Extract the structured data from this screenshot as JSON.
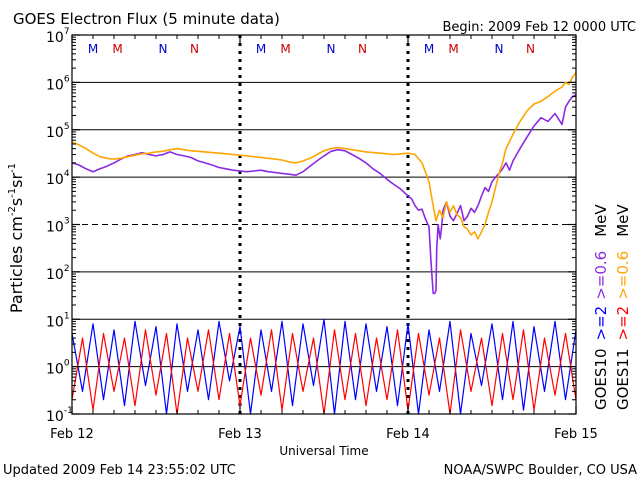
{
  "header": {
    "title": "GOES Electron Flux (5 minute data)",
    "begin": "Begin: 2009 Feb 12 0000 UTC"
  },
  "footer": {
    "updated": "Updated 2009 Feb 14 23:55:02 UTC",
    "credit": "NOAA/SWPC Boulder, CO USA"
  },
  "colors": {
    "goes10_2mev": "#0000ff",
    "goes11_2mev": "#ff0000",
    "goes10_06mev": "#8a2be2",
    "goes11_06mev": "#ffa500",
    "marker_m": "#0000cc",
    "marker_n": "#cc0000"
  },
  "chart_data": {
    "type": "line",
    "title": "GOES Electron Flux (5 minute data)",
    "xlabel": "Universal Time",
    "ylabel": "Particles cm^-2 s^-1 sr^-1",
    "xlim": [
      0,
      72
    ],
    "x_unit": "hours since 2009 Feb 12 0000 UTC",
    "ylim": [
      0.1,
      10000000
    ],
    "yscale": "log",
    "x_ticks": [
      {
        "x": 0,
        "label": "Feb 12"
      },
      {
        "x": 24,
        "label": "Feb 13"
      },
      {
        "x": 48,
        "label": "Feb 14"
      },
      {
        "x": 72,
        "label": "Feb 15"
      }
    ],
    "y_ticks": [
      {
        "value": 0.1,
        "base": "10",
        "exp": "-1"
      },
      {
        "value": 1,
        "base": "10",
        "exp": "0"
      },
      {
        "value": 10,
        "base": "10",
        "exp": "1"
      },
      {
        "value": 100,
        "base": "10",
        "exp": "2"
      },
      {
        "value": 1000,
        "base": "10",
        "exp": "3"
      },
      {
        "value": 10000,
        "base": "10",
        "exp": "4"
      },
      {
        "value": 100000,
        "base": "10",
        "exp": "5"
      },
      {
        "value": 1000000,
        "base": "10",
        "exp": "6"
      },
      {
        "value": 10000000,
        "base": "10",
        "exp": "7"
      }
    ],
    "ylabel_parts": {
      "main": "Particles cm",
      "e1": "-2",
      "s": "s",
      "e2": "-1",
      "sr": "sr",
      "e3": "-1"
    },
    "threshold_lines": [
      {
        "value": 1000,
        "style": "dashed"
      }
    ],
    "series": [
      {
        "name": "GOES10 >=0.6 MeV",
        "color": "#8a2be2",
        "x": [
          0,
          1,
          2,
          3,
          4,
          5,
          6,
          7,
          8,
          9,
          10,
          11,
          12,
          13,
          14,
          15,
          16,
          17,
          18,
          19,
          20,
          21,
          22,
          23,
          24,
          25,
          26,
          27,
          28,
          29,
          30,
          31,
          32,
          33,
          34,
          35,
          36,
          37,
          38,
          39,
          40,
          41,
          42,
          43,
          44,
          45,
          46,
          47,
          48,
          48.5,
          49,
          49.5,
          50,
          50.5,
          51,
          51.3,
          51.6,
          51.8,
          52,
          52.1,
          52.3,
          52.6,
          52.8,
          53,
          53.5,
          54,
          54.5,
          55,
          55.5,
          56,
          56.5,
          57,
          57.5,
          58,
          58.5,
          59,
          59.5,
          60,
          60.5,
          61,
          61.5,
          62,
          62.5,
          63,
          64,
          65,
          66,
          67,
          68,
          69,
          70,
          70.5,
          71,
          71.5,
          72
        ],
        "values": [
          20000,
          18000,
          15000,
          13000,
          15000,
          17000,
          20000,
          24000,
          28000,
          30000,
          33000,
          30000,
          28000,
          30000,
          34000,
          30000,
          28000,
          26000,
          22000,
          20000,
          18000,
          16000,
          15000,
          14000,
          13500,
          13000,
          13500,
          14000,
          13000,
          12500,
          12000,
          11500,
          11000,
          13000,
          17000,
          22000,
          28000,
          35000,
          38000,
          36000,
          30000,
          25000,
          20000,
          15000,
          12000,
          9000,
          7000,
          5500,
          4000,
          3500,
          2500,
          2000,
          2100,
          1300,
          900,
          150,
          35,
          35,
          40,
          300,
          1000,
          500,
          900,
          2000,
          3000,
          1500,
          1200,
          1700,
          2500,
          1200,
          1500,
          2200,
          1800,
          2500,
          4000,
          6000,
          5000,
          8000,
          10000,
          12000,
          15000,
          20000,
          14000,
          22000,
          40000,
          70000,
          120000,
          180000,
          150000,
          220000,
          130000,
          300000,
          400000,
          500000,
          550000
        ]
      },
      {
        "name": "GOES11 >=0.6 MeV",
        "color": "#ffa500",
        "x": [
          0,
          1,
          2,
          3,
          4,
          5,
          6,
          7,
          8,
          9,
          10,
          11,
          12,
          13,
          14,
          15,
          16,
          17,
          18,
          19,
          20,
          21,
          22,
          23,
          24,
          25,
          26,
          27,
          28,
          29,
          30,
          31,
          32,
          33,
          34,
          35,
          36,
          37,
          38,
          39,
          40,
          41,
          42,
          43,
          44,
          45,
          46,
          47,
          48,
          49,
          50,
          51,
          51.5,
          52,
          52.5,
          53,
          53.5,
          54,
          54.5,
          55,
          55.5,
          56,
          56.5,
          57,
          57.5,
          58,
          58.5,
          59,
          59.5,
          60,
          60.5,
          61,
          61.5,
          62,
          63,
          64,
          65,
          66,
          67,
          68,
          69,
          70,
          70.5,
          71,
          71.5,
          72
        ],
        "values": [
          55000,
          48000,
          40000,
          32000,
          27000,
          25000,
          24000,
          25000,
          27000,
          29000,
          31000,
          32000,
          34000,
          35000,
          38000,
          40000,
          38000,
          36000,
          35000,
          34000,
          33000,
          32000,
          31000,
          30000,
          29000,
          28000,
          27000,
          26000,
          25000,
          24000,
          23000,
          21000,
          20000,
          22000,
          25000,
          30000,
          36000,
          40000,
          42000,
          40000,
          38000,
          36000,
          34000,
          33000,
          32000,
          31000,
          30000,
          31000,
          32000,
          30000,
          20000,
          8000,
          3000,
          1200,
          2000,
          1400,
          3000,
          1800,
          2500,
          1600,
          1400,
          900,
          800,
          600,
          700,
          500,
          700,
          1000,
          1800,
          3000,
          6000,
          12000,
          20000,
          40000,
          80000,
          150000,
          250000,
          350000,
          400000,
          500000,
          650000,
          800000,
          1000000,
          900000,
          1300000,
          1600000
        ]
      },
      {
        "name": "GOES10 >=2 MeV",
        "color": "#0000ff",
        "x": [
          0,
          1.5,
          3,
          4.5,
          6,
          7.5,
          9,
          10.5,
          12,
          13.5,
          15,
          16.5,
          18,
          19.5,
          21,
          22.5,
          24,
          25.5,
          27,
          28.5,
          30,
          31.5,
          33,
          34.5,
          36,
          37.5,
          39,
          40.5,
          42,
          43.5,
          45,
          46.5,
          48,
          49.5,
          51,
          52.5,
          54,
          55.5,
          57,
          58.5,
          60,
          61.5,
          63,
          64.5,
          66,
          67.5,
          69,
          70.5,
          72
        ],
        "values": [
          5,
          0.3,
          8,
          0.2,
          6,
          0.15,
          9,
          0.4,
          7,
          0.1,
          8,
          0.3,
          6,
          0.2,
          9,
          0.5,
          7,
          0.1,
          6,
          0.3,
          9,
          0.15,
          8,
          0.4,
          10,
          0.1,
          9,
          0.2,
          8,
          0.3,
          7,
          0.15,
          8,
          0.1,
          6,
          0.3,
          9,
          0.1,
          5,
          0.4,
          8,
          0.2,
          9,
          0.12,
          7,
          0.3,
          9,
          0.2,
          6
        ]
      },
      {
        "name": "GOES11 >=2 MeV",
        "color": "#ff0000",
        "x": [
          0,
          1.5,
          3,
          4.5,
          6,
          7.5,
          9,
          10.5,
          12,
          13.5,
          15,
          16.5,
          18,
          19.5,
          21,
          22.5,
          24,
          25.5,
          27,
          28.5,
          30,
          31.5,
          33,
          34.5,
          36,
          37.5,
          39,
          40.5,
          42,
          43.5,
          45,
          46.5,
          48,
          49.5,
          51,
          52.5,
          54,
          55.5,
          57,
          58.5,
          60,
          61.5,
          63,
          64.5,
          66,
          67.5,
          69,
          70.5,
          72
        ],
        "values": [
          0.2,
          4,
          0.12,
          5,
          0.3,
          4,
          0.15,
          6,
          0.25,
          5,
          0.1,
          4,
          0.3,
          6,
          0.2,
          5,
          0.15,
          4,
          0.25,
          6,
          0.12,
          5,
          0.3,
          4,
          0.1,
          6,
          0.2,
          5,
          0.15,
          4,
          0.2,
          6,
          0.12,
          5,
          0.25,
          4,
          0.1,
          6,
          0.3,
          4,
          0.15,
          5,
          0.2,
          6,
          0.12,
          4,
          0.25,
          5,
          0.2
        ]
      }
    ],
    "satellite_markers": [
      {
        "x": 3,
        "label": "M",
        "color": "#0000cc"
      },
      {
        "x": 6.5,
        "label": "M",
        "color": "#cc0000"
      },
      {
        "x": 13,
        "label": "N",
        "color": "#0000cc"
      },
      {
        "x": 17.5,
        "label": "N",
        "color": "#cc0000"
      },
      {
        "x": 27,
        "label": "M",
        "color": "#0000cc"
      },
      {
        "x": 30.5,
        "label": "M",
        "color": "#cc0000"
      },
      {
        "x": 37,
        "label": "N",
        "color": "#0000cc"
      },
      {
        "x": 41.5,
        "label": "N",
        "color": "#cc0000"
      },
      {
        "x": 51,
        "label": "M",
        "color": "#0000cc"
      },
      {
        "x": 54.5,
        "label": "M",
        "color": "#cc0000"
      },
      {
        "x": 61,
        "label": "N",
        "color": "#0000cc"
      },
      {
        "x": 65.5,
        "label": "N",
        "color": "#cc0000"
      }
    ],
    "legend": {
      "placement": "right",
      "rows": [
        {
          "items": [
            {
              "text": "GOES10",
              "color": "#000000"
            },
            {
              "text": ">=2",
              "color": "#0000ff"
            },
            {
              "text": ">=0.6",
              "color": "#8a2be2"
            },
            {
              "text": "MeV",
              "color": "#000000"
            }
          ]
        },
        {
          "items": [
            {
              "text": "GOES11",
              "color": "#000000"
            },
            {
              "text": ">=2",
              "color": "#ff0000"
            },
            {
              "text": ">=0.6",
              "color": "#ffa500"
            },
            {
              "text": "MeV",
              "color": "#000000"
            }
          ]
        }
      ]
    }
  }
}
